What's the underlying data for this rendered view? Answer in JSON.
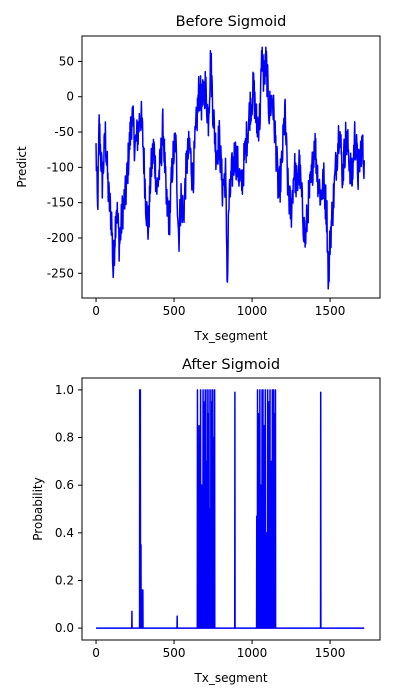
{
  "chart_data": [
    {
      "type": "line",
      "title": "Before Sigmoid",
      "xlabel": "Tx_segment",
      "ylabel": "Predict",
      "xlim": [
        -90,
        1820
      ],
      "ylim": [
        -285,
        86
      ],
      "xticks": [
        0,
        500,
        1000,
        1500
      ],
      "yticks": [
        50,
        0,
        -50,
        -100,
        -150,
        -200,
        -250
      ],
      "grid": false,
      "legend": "none",
      "color": "#0000ff",
      "series": [
        {
          "x_range": [
            0,
            1719
          ],
          "key_points": [
            [
              0,
              -75
            ],
            [
              10,
              -165
            ],
            [
              20,
              -40
            ],
            [
              40,
              -120
            ],
            [
              60,
              -55
            ],
            [
              80,
              -140
            ],
            [
              100,
              -175
            ],
            [
              110,
              -250
            ],
            [
              130,
              -150
            ],
            [
              150,
              -210
            ],
            [
              170,
              -160
            ],
            [
              190,
              -140
            ],
            [
              210,
              -80
            ],
            [
              230,
              -25
            ],
            [
              250,
              -70
            ],
            [
              270,
              -50
            ],
            [
              285,
              -20
            ],
            [
              300,
              -60
            ],
            [
              320,
              -150
            ],
            [
              335,
              -190
            ],
            [
              350,
              -110
            ],
            [
              370,
              -70
            ],
            [
              390,
              -130
            ],
            [
              410,
              -100
            ],
            [
              430,
              -40
            ],
            [
              450,
              -150
            ],
            [
              470,
              -175
            ],
            [
              490,
              -95
            ],
            [
              510,
              -60
            ],
            [
              530,
              -200
            ],
            [
              545,
              -140
            ],
            [
              560,
              -170
            ],
            [
              580,
              -95
            ],
            [
              600,
              -70
            ],
            [
              620,
              -120
            ],
            [
              640,
              -50
            ],
            [
              660,
              10
            ],
            [
              680,
              -10
            ],
            [
              700,
              15
            ],
            [
              720,
              -30
            ],
            [
              735,
              55
            ],
            [
              750,
              -20
            ],
            [
              770,
              -80
            ],
            [
              790,
              -60
            ],
            [
              810,
              -130
            ],
            [
              830,
              -110
            ],
            [
              842,
              -265
            ],
            [
              850,
              -160
            ],
            [
              870,
              -110
            ],
            [
              890,
              -80
            ],
            [
              910,
              -100
            ],
            [
              930,
              -130
            ],
            [
              950,
              -90
            ],
            [
              970,
              -50
            ],
            [
              990,
              -10
            ],
            [
              1010,
              10
            ],
            [
              1030,
              -40
            ],
            [
              1050,
              -30
            ],
            [
              1065,
              70
            ],
            [
              1075,
              20
            ],
            [
              1090,
              50
            ],
            [
              1110,
              -20
            ],
            [
              1130,
              0
            ],
            [
              1150,
              -60
            ],
            [
              1170,
              -140
            ],
            [
              1190,
              -100
            ],
            [
              1210,
              -20
            ],
            [
              1230,
              -130
            ],
            [
              1250,
              -165
            ],
            [
              1270,
              -100
            ],
            [
              1290,
              -130
            ],
            [
              1300,
              -90
            ],
            [
              1320,
              -150
            ],
            [
              1340,
              -205
            ],
            [
              1350,
              -180
            ],
            [
              1360,
              -150
            ],
            [
              1380,
              -120
            ],
            [
              1400,
              -60
            ],
            [
              1420,
              -110
            ],
            [
              1440,
              -140
            ],
            [
              1460,
              -120
            ],
            [
              1480,
              -170
            ],
            [
              1490,
              -270
            ],
            [
              1500,
              -200
            ],
            [
              1520,
              -150
            ],
            [
              1540,
              -90
            ],
            [
              1560,
              -40
            ],
            [
              1580,
              -110
            ],
            [
              1600,
              -60
            ],
            [
              1620,
              -80
            ],
            [
              1640,
              -120
            ],
            [
              1660,
              -50
            ],
            [
              1680,
              -110
            ],
            [
              1700,
              -70
            ],
            [
              1719,
              -90
            ]
          ]
        }
      ]
    },
    {
      "type": "line",
      "title": "After Sigmoid",
      "xlabel": "Tx_segment",
      "ylabel": "Probability",
      "xlim": [
        -90,
        1820
      ],
      "ylim": [
        -0.05,
        1.05
      ],
      "xticks": [
        0,
        500,
        1000,
        1500
      ],
      "yticks": [
        0.0,
        0.2,
        0.4,
        0.6,
        0.8,
        1.0
      ],
      "ytick_labels": [
        "0.0",
        "0.2",
        "0.4",
        "0.6",
        "0.8",
        "1.0"
      ],
      "grid": false,
      "legend": "none",
      "color": "#0000ff",
      "baseline": 0.0,
      "series": [
        {
          "x_range": [
            0,
            1719
          ],
          "spikes": [
            [
              230,
              0.07
            ],
            [
              280,
              1.0
            ],
            [
              284,
              1.0
            ],
            [
              288,
              0.35
            ],
            [
              295,
              0.16
            ],
            [
              300,
              0.16
            ],
            [
              520,
              0.05
            ],
            [
              650,
              1.0
            ],
            [
              660,
              0.85
            ],
            [
              670,
              1.0
            ],
            [
              678,
              0.6
            ],
            [
              686,
              1.0
            ],
            [
              694,
              0.95
            ],
            [
              700,
              1.0
            ],
            [
              706,
              0.7
            ],
            [
              712,
              1.0
            ],
            [
              718,
              0.9
            ],
            [
              724,
              1.0
            ],
            [
              730,
              0.5
            ],
            [
              736,
              1.0
            ],
            [
              742,
              0.95
            ],
            [
              748,
              1.0
            ],
            [
              754,
              0.8
            ],
            [
              760,
              1.0
            ],
            [
              890,
              0.99
            ],
            [
              1030,
              0.47
            ],
            [
              1035,
              1.0
            ],
            [
              1042,
              0.9
            ],
            [
              1050,
              1.0
            ],
            [
              1057,
              0.6
            ],
            [
              1064,
              1.0
            ],
            [
              1070,
              1.0
            ],
            [
              1078,
              0.85
            ],
            [
              1085,
              1.0
            ],
            [
              1092,
              0.4
            ],
            [
              1100,
              1.0
            ],
            [
              1108,
              0.95
            ],
            [
              1115,
              1.0
            ],
            [
              1122,
              0.7
            ],
            [
              1130,
              1.0
            ],
            [
              1138,
              1.0
            ],
            [
              1145,
              0.9
            ],
            [
              1150,
              1.0
            ],
            [
              1440,
              0.99
            ]
          ]
        }
      ]
    }
  ]
}
